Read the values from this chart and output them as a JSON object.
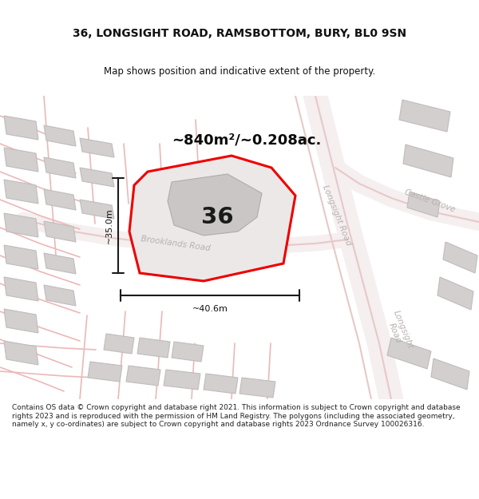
{
  "title": "36, LONGSIGHT ROAD, RAMSBOTTOM, BURY, BL0 9SN",
  "subtitle": "Map shows position and indicative extent of the property.",
  "footer": "Contains OS data © Crown copyright and database right 2021. This information is subject to Crown copyright and database rights 2023 and is reproduced with the permission of HM Land Registry. The polygons (including the associated geometry, namely x, y co-ordinates) are subject to Crown copyright and database rights 2023 Ordnance Survey 100026316.",
  "area_label": "~840m²/~0.208ac.",
  "number_label": "36",
  "dim_height": "~35.0m",
  "dim_width": "~40.6m",
  "bg_color": "#f2eded",
  "road_fill_color": "#f7f2f2",
  "road_edge_color": "#e8c8c8",
  "building_fill": "#d4cfcf",
  "building_outline": "#c0bcbc",
  "property_fill": "#ece8e8",
  "property_outline": "#ee0000",
  "inner_building_fill": "#ccc8c8",
  "road_label_color": "#b8b0b0",
  "dim_line_color": "#1a1a1a",
  "title_color": "#111111",
  "footer_color": "#222222",
  "white": "#ffffff"
}
